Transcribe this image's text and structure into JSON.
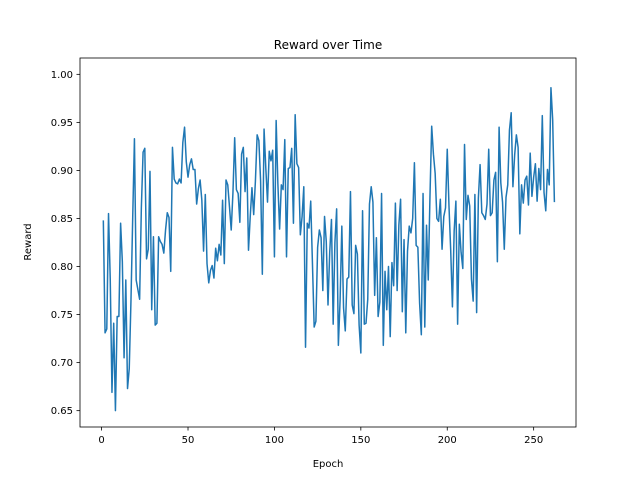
{
  "chart_data": {
    "type": "line",
    "title": "Reward over Time",
    "xlabel": "Epoch",
    "ylabel": "Reward",
    "xlim": [
      -12.5,
      274.5
    ],
    "ylim": [
      0.633,
      1.017
    ],
    "xticks": [
      0,
      50,
      100,
      150,
      200,
      250
    ],
    "yticks": [
      0.65,
      0.7,
      0.75,
      0.8,
      0.85,
      0.9,
      0.95,
      1.0
    ],
    "ytick_labels": [
      "0.65",
      "0.70",
      "0.75",
      "0.80",
      "0.85",
      "0.90",
      "0.95",
      "1.00"
    ],
    "grid": false,
    "color": "#1f77b4",
    "series": [
      {
        "name": "",
        "x_start": 1,
        "x_step": 1,
        "values": [
          0.848,
          0.731,
          0.735,
          0.855,
          0.787,
          0.669,
          0.741,
          0.65,
          0.748,
          0.748,
          0.845,
          0.805,
          0.705,
          0.786,
          0.673,
          0.694,
          0.765,
          0.851,
          0.933,
          0.786,
          0.776,
          0.766,
          0.861,
          0.919,
          0.923,
          0.808,
          0.818,
          0.899,
          0.755,
          0.831,
          0.739,
          0.741,
          0.831,
          0.826,
          0.823,
          0.814,
          0.838,
          0.856,
          0.851,
          0.795,
          0.924,
          0.891,
          0.887,
          0.886,
          0.891,
          0.887,
          0.929,
          0.945,
          0.909,
          0.893,
          0.906,
          0.912,
          0.901,
          0.901,
          0.865,
          0.881,
          0.89,
          0.869,
          0.816,
          0.875,
          0.803,
          0.783,
          0.796,
          0.801,
          0.788,
          0.819,
          0.806,
          0.823,
          0.812,
          0.869,
          0.803,
          0.89,
          0.885,
          0.862,
          0.838,
          0.877,
          0.934,
          0.88,
          0.876,
          0.846,
          0.917,
          0.924,
          0.878,
          0.913,
          0.817,
          0.852,
          0.882,
          0.854,
          0.889,
          0.937,
          0.931,
          0.889,
          0.792,
          0.943,
          0.903,
          0.867,
          0.92,
          0.91,
          0.921,
          0.81,
          0.952,
          0.886,
          0.839,
          0.885,
          0.88,
          0.932,
          0.81,
          0.902,
          0.903,
          0.923,
          0.845,
          0.958,
          0.907,
          0.903,
          0.833,
          0.852,
          0.883,
          0.716,
          0.845,
          0.84,
          0.868,
          0.803,
          0.737,
          0.743,
          0.82,
          0.838,
          0.83,
          0.775,
          0.852,
          0.826,
          0.76,
          0.815,
          0.849,
          0.74,
          0.825,
          0.86,
          0.718,
          0.765,
          0.842,
          0.757,
          0.733,
          0.787,
          0.789,
          0.878,
          0.76,
          0.751,
          0.822,
          0.813,
          0.739,
          0.71,
          0.858,
          0.74,
          0.741,
          0.766,
          0.865,
          0.883,
          0.867,
          0.77,
          0.83,
          0.748,
          0.763,
          0.876,
          0.718,
          0.795,
          0.755,
          0.8,
          0.727,
          0.804,
          0.78,
          0.866,
          0.775,
          0.843,
          0.87,
          0.753,
          0.828,
          0.731,
          0.816,
          0.842,
          0.835,
          0.85,
          0.908,
          0.822,
          0.82,
          0.762,
          0.729,
          0.876,
          0.737,
          0.843,
          0.786,
          0.873,
          0.946,
          0.917,
          0.897,
          0.85,
          0.847,
          0.87,
          0.818,
          0.852,
          0.861,
          0.922,
          0.863,
          0.817,
          0.758,
          0.837,
          0.868,
          0.74,
          0.844,
          0.815,
          0.798,
          0.927,
          0.849,
          0.874,
          0.863,
          0.787,
          0.764,
          0.875,
          0.752,
          0.871,
          0.906,
          0.856,
          0.853,
          0.849,
          0.865,
          0.922,
          0.853,
          0.856,
          0.89,
          0.898,
          0.805,
          0.945,
          0.887,
          0.867,
          0.818,
          0.872,
          0.885,
          0.942,
          0.96,
          0.883,
          0.916,
          0.937,
          0.924,
          0.834,
          0.885,
          0.866,
          0.89,
          0.894,
          0.864,
          0.918,
          0.873,
          0.893,
          0.907,
          0.868,
          0.902,
          0.88,
          0.957,
          0.877,
          0.858,
          0.901,
          0.885,
          0.986,
          0.953,
          0.867
        ]
      }
    ]
  }
}
